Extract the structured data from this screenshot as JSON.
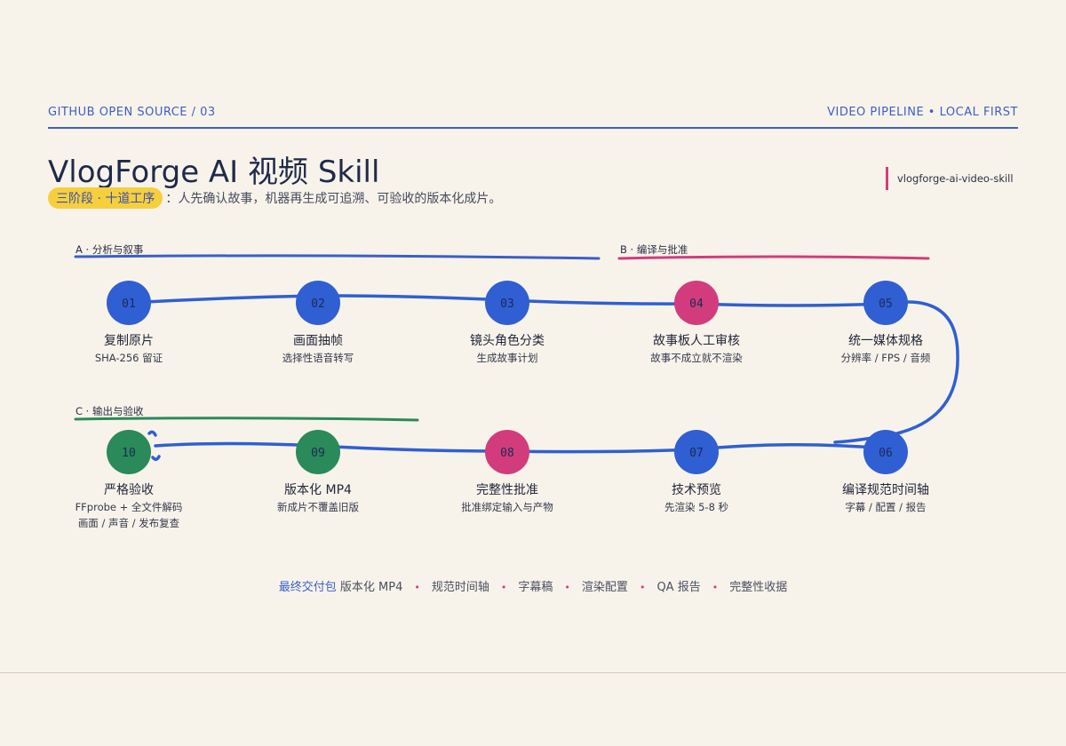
{
  "header": {
    "left": "GITHUB OPEN SOURCE / 03",
    "right": "VIDEO PIPELINE  •  LOCAL FIRST"
  },
  "title": "VlogForge AI 视频 Skill",
  "subtitle": {
    "pill": "三阶段 · 十道工序",
    "text": "：人先确认故事，机器再生成可追溯、可验收的版本化成片。"
  },
  "slug": "vlogforge-ai-video-skill",
  "stages": [
    {
      "label": "A · 分析与叙事",
      "color": "#3a5fc8"
    },
    {
      "label": "B · 编译与批准",
      "color": "#d23c7c"
    },
    {
      "label": "C · 输出与验收",
      "color": "#2a8a5a"
    }
  ],
  "colors": {
    "blue": "#2f5fd2",
    "pink": "#d23c7c",
    "green": "#2a8a5a",
    "line": "#2f5fd2"
  },
  "steps": [
    {
      "num": "01",
      "title": "复制原片",
      "desc": [
        "SHA-256 留证"
      ],
      "color": "blue"
    },
    {
      "num": "02",
      "title": "画面抽帧",
      "desc": [
        "选择性语音转写"
      ],
      "color": "blue"
    },
    {
      "num": "03",
      "title": "镜头角色分类",
      "desc": [
        "生成故事计划"
      ],
      "color": "blue"
    },
    {
      "num": "04",
      "title": "故事板人工审核",
      "desc": [
        "故事不成立就不渲染"
      ],
      "color": "pink"
    },
    {
      "num": "05",
      "title": "统一媒体规格",
      "desc": [
        "分辨率 / FPS / 音频"
      ],
      "color": "blue"
    },
    {
      "num": "06",
      "title": "编译规范时间轴",
      "desc": [
        "字幕 / 配置 / 报告"
      ],
      "color": "blue"
    },
    {
      "num": "07",
      "title": "技术预览",
      "desc": [
        "先渲染 5-8 秒"
      ],
      "color": "blue"
    },
    {
      "num": "08",
      "title": "完整性批准",
      "desc": [
        "批准绑定输入与产物"
      ],
      "color": "pink"
    },
    {
      "num": "09",
      "title": "版本化 MP4",
      "desc": [
        "新成片不覆盖旧版"
      ],
      "color": "green"
    },
    {
      "num": "10",
      "title": "严格验收",
      "desc": [
        "FFprobe + 全文件解码",
        "画面 / 声音 / 发布复查"
      ],
      "color": "green"
    }
  ],
  "deliverables": {
    "lead": "最终交付包",
    "items": [
      "版本化 MP4",
      "规范时间轴",
      "字幕稿",
      "渲染配置",
      "QA 报告",
      "完整性收据"
    ]
  }
}
